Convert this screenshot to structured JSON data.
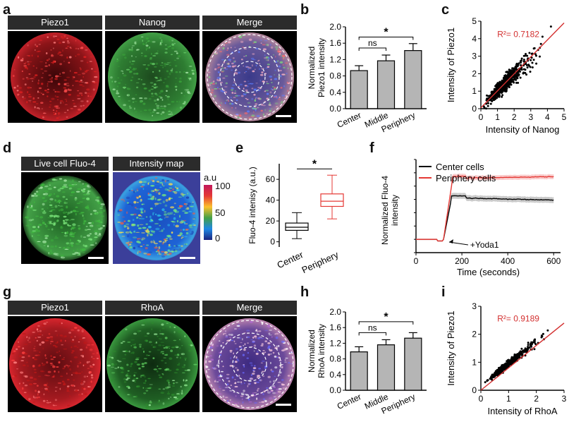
{
  "figure": {
    "panel_labels": [
      "a",
      "b",
      "c",
      "d",
      "e",
      "f",
      "g",
      "h",
      "i"
    ],
    "a_headers": [
      "Piezo1",
      "Nanog",
      "Merge"
    ],
    "d_headers": [
      "Live cell Fluo-4",
      "Intensity map"
    ],
    "g_headers": [
      "Piezo1",
      "RhoA",
      "Merge"
    ],
    "colorbar": {
      "unit": "a.u",
      "ticks": [
        "100",
        "50",
        "0"
      ]
    }
  },
  "chart_data": [
    {
      "id": "b",
      "type": "bar",
      "categories": [
        "Center",
        "Middle",
        "Periphery"
      ],
      "values": [
        0.93,
        1.17,
        1.42
      ],
      "errors": [
        0.12,
        0.14,
        0.17
      ],
      "ylabel": "Normalized Piezo1 intensity",
      "ylabel_lines": [
        "Normalized",
        "Piezo1 intensity"
      ],
      "ylim": [
        0,
        2.0
      ],
      "yticks": [
        "0.0",
        "0.4",
        "0.8",
        "1.2",
        "1.6",
        "2.0"
      ],
      "annotations": [
        "ns",
        "*"
      ],
      "color": "#b5b5b5"
    },
    {
      "id": "c",
      "type": "scatter",
      "xlabel": "Intensity of Nanog",
      "ylabel": "Intensity of Piezo1",
      "xlim": [
        0,
        5
      ],
      "ylim": [
        0,
        5
      ],
      "xticks": [
        "0",
        "1",
        "2",
        "3",
        "4",
        "5"
      ],
      "yticks": [
        "0",
        "1",
        "2",
        "3",
        "4",
        "5"
      ],
      "r2_label": "R²= 0.7182",
      "fit": {
        "slope": 0.97,
        "intercept": 0.05,
        "color": "#d32f2f"
      },
      "points_color": "#000000"
    },
    {
      "id": "e",
      "type": "box",
      "categories": [
        "Center",
        "Periphery"
      ],
      "boxes": [
        {
          "min": 3,
          "q1": 11,
          "median": 14,
          "q3": 18,
          "max": 28,
          "color": "#000000"
        },
        {
          "min": 22,
          "q1": 34,
          "median": 39,
          "q3": 46,
          "max": 64,
          "color": "#e53935"
        }
      ],
      "ylabel": "Fluo-4 intenisy (a.u.)",
      "ylim": [
        -5,
        75
      ],
      "yticks": [
        "0",
        "20",
        "40",
        "60"
      ],
      "annotations": [
        "*"
      ]
    },
    {
      "id": "f",
      "type": "line",
      "xlabel": "Time (seconds)",
      "ylabel": "Normalized Fluo-4 intensity",
      "ylabel_lines": [
        "Normalized Fluo-4",
        "intensity"
      ],
      "xlim": [
        0,
        630
      ],
      "xticks": [
        "0",
        "200",
        "400",
        "600"
      ],
      "ylim": [
        0,
        7
      ],
      "annotation": "+Yoda1",
      "series": [
        {
          "name": "Center cells",
          "color": "#000000",
          "baseline": 1.0,
          "plateau": 4.1,
          "onset": 120,
          "peak": 155
        },
        {
          "name": "Periphery cells",
          "color": "#e53935",
          "baseline": 1.0,
          "plateau": 5.6,
          "onset": 120,
          "peak": 160
        }
      ]
    },
    {
      "id": "h",
      "type": "bar",
      "categories": [
        "Center",
        "Middle",
        "Periphery"
      ],
      "values": [
        0.98,
        1.16,
        1.33
      ],
      "errors": [
        0.13,
        0.13,
        0.14
      ],
      "ylabel": "Normalized RhoA intensity",
      "ylabel_lines": [
        "Normalized",
        "RhoA intensity"
      ],
      "ylim": [
        0,
        2.0
      ],
      "yticks": [
        "0.0",
        "0.4",
        "0.8",
        "1.2",
        "1.6",
        "2.0"
      ],
      "annotations": [
        "ns",
        "*"
      ],
      "color": "#b5b5b5"
    },
    {
      "id": "i",
      "type": "scatter",
      "xlabel": "Intensity of RhoA",
      "ylabel": "Intensity of Piezo1",
      "xlim": [
        0,
        3
      ],
      "ylim": [
        0,
        3
      ],
      "xticks": [
        "0",
        "1",
        "2",
        "3"
      ],
      "yticks": [
        "0",
        "1",
        "2",
        "3"
      ],
      "r2_label": "R²= 0.9189",
      "fit": {
        "slope": 0.8,
        "intercept": 0.0,
        "color": "#d32f2f"
      },
      "points_color": "#000000"
    }
  ]
}
